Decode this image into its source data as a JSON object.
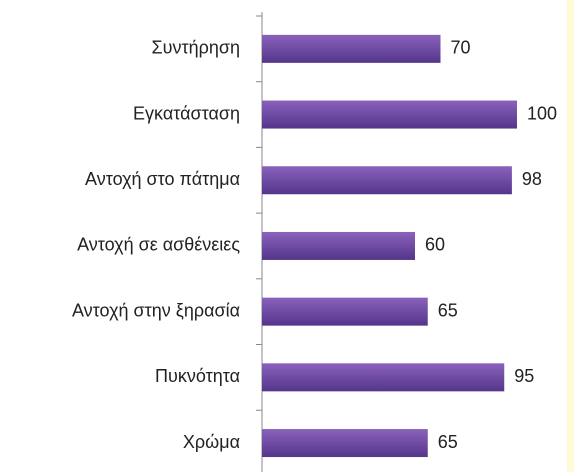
{
  "chart_data": {
    "type": "bar",
    "orientation": "horizontal",
    "categories": [
      "Συντήρηση",
      "Εγκατάσταση",
      "Αντοχή στο πάτημα",
      "Αντοχή σε ασθένειες",
      "Αντοχή στην ξηρασία",
      "Πυκνότητα",
      "Χρώμα"
    ],
    "values": [
      70,
      100,
      98,
      60,
      65,
      95,
      65
    ],
    "color": "#6a46a0"
  }
}
